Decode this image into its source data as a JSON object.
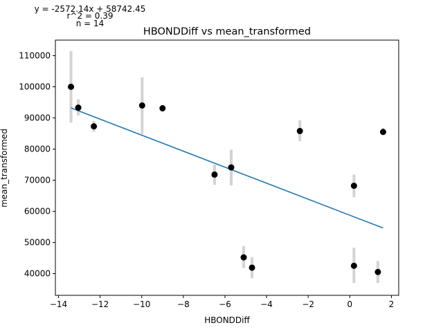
{
  "chart_data": {
    "type": "scatter",
    "title": "HBONDDiff vs mean_transformed",
    "xlabel": "HBONDDiff",
    "ylabel": "mean_transformed",
    "xlim": [
      -14.15,
      2.35
    ],
    "ylim": [
      33000,
      115000
    ],
    "grid": false,
    "annotations": [
      "y = -2572.14x + 58742.45",
      "r^2 = 0.39",
      "n = 14"
    ],
    "x_ticks": [
      -14,
      -12,
      -10,
      -8,
      -6,
      -4,
      -2,
      0,
      2
    ],
    "x_tick_labels": [
      "−14",
      "−12",
      "−10",
      "−8",
      "−6",
      "−4",
      "−2",
      "0",
      "2"
    ],
    "y_ticks": [
      40000,
      50000,
      60000,
      70000,
      80000,
      90000,
      100000,
      110000
    ],
    "y_tick_labels": [
      "40000",
      "50000",
      "60000",
      "70000",
      "80000",
      "90000",
      "100000",
      "110000"
    ],
    "points": [
      {
        "x": -13.4,
        "y": 100000,
        "err_low": 88500,
        "err_high": 111500
      },
      {
        "x": -13.05,
        "y": 93300,
        "err_low": 90800,
        "err_high": 96000
      },
      {
        "x": -12.3,
        "y": 87300,
        "err_low": 85500,
        "err_high": 89000
      },
      {
        "x": -9.98,
        "y": 94000,
        "err_low": 84800,
        "err_high": 103000
      },
      {
        "x": -9.0,
        "y": 93100,
        "err_low": 92000,
        "err_high": 94200
      },
      {
        "x": -6.5,
        "y": 71800,
        "err_low": 68500,
        "err_high": 75000
      },
      {
        "x": -5.7,
        "y": 74100,
        "err_low": 68300,
        "err_high": 79800
      },
      {
        "x": -5.1,
        "y": 45200,
        "err_low": 41800,
        "err_high": 48800
      },
      {
        "x": -4.7,
        "y": 41900,
        "err_low": 38500,
        "err_high": 45300
      },
      {
        "x": -2.4,
        "y": 85800,
        "err_low": 82500,
        "err_high": 89200
      },
      {
        "x": 0.2,
        "y": 68200,
        "err_low": 64500,
        "err_high": 71800
      },
      {
        "x": 0.2,
        "y": 42500,
        "err_low": 37000,
        "err_high": 48300
      },
      {
        "x": 1.35,
        "y": 40500,
        "err_low": 37000,
        "err_high": 44000
      },
      {
        "x": 1.6,
        "y": 85500,
        "err_low": 84500,
        "err_high": 86800
      }
    ],
    "fit": {
      "slope": -2572.14,
      "intercept": 58742.45,
      "x_start": -13.4,
      "x_end": 1.6
    },
    "colors": {
      "points": "#000000",
      "error_bars": "#d3d3d3",
      "fit_line": "#1f77b4"
    }
  }
}
